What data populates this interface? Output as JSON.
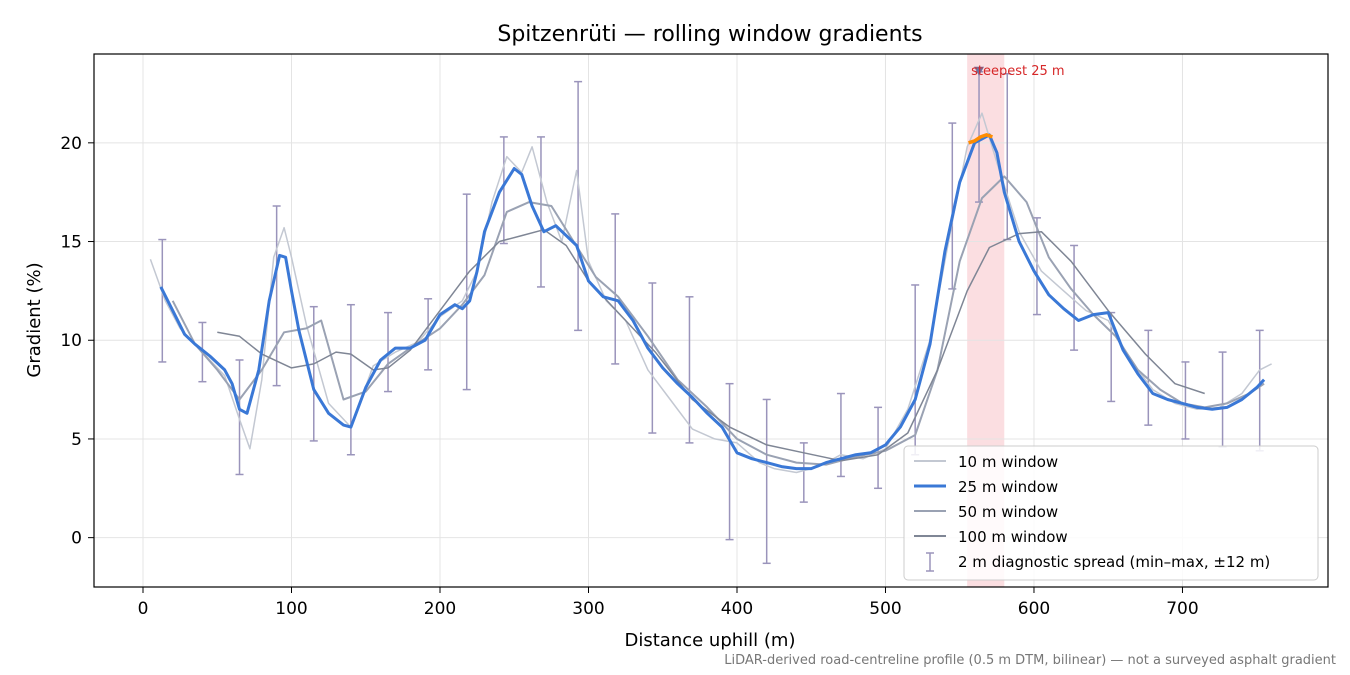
{
  "chart_data": {
    "type": "line",
    "title": "Spitzenrüti — rolling window gradients",
    "xlabel": "Distance uphill (m)",
    "ylabel": "Gradient (%)",
    "xlim": [
      -33,
      798
    ],
    "ylim": [
      -2.5,
      24.5
    ],
    "xticks": [
      0,
      100,
      200,
      300,
      400,
      500,
      600,
      700
    ],
    "yticks": [
      0,
      5,
      10,
      15,
      20
    ],
    "grid": true,
    "legend_position": "lower-right",
    "footnote": "LiDAR-derived road-centreline profile (0.5 m DTM, bilinear) — not a surveyed asphalt gradient",
    "annotation": {
      "text": "steepest 25 m",
      "x": 563,
      "y": 23.6,
      "span": [
        555,
        580
      ]
    },
    "colors": {
      "w10": "#c3c8d2",
      "w25": "#3a78d6",
      "w50": "#9aa2b3",
      "w100": "#7f8695",
      "spread": "#9a94bb",
      "highlight": "#f3a0a8",
      "steep": "#ff8c00",
      "marker": "#6f6f9c"
    },
    "series": [
      {
        "name": "10 m window",
        "x": [
          5,
          15,
          25,
          40,
          55,
          65,
          72,
          80,
          88,
          95,
          100,
          110,
          125,
          140,
          155,
          170,
          185,
          200,
          215,
          225,
          235,
          245,
          255,
          262,
          272,
          282,
          292,
          300,
          312,
          325,
          340,
          355,
          370,
          385,
          400,
          415,
          425,
          440,
          455,
          470,
          485,
          500,
          515,
          530,
          545,
          555,
          565,
          575,
          590,
          605,
          620,
          635,
          650,
          665,
          680,
          695,
          710,
          725,
          740,
          752,
          760
        ],
        "y": [
          14.1,
          12.0,
          10.6,
          9.4,
          8.2,
          6.0,
          4.5,
          8.0,
          14.2,
          15.7,
          14.2,
          10.8,
          6.8,
          5.6,
          8.7,
          9.4,
          9.9,
          11.2,
          12.0,
          13.5,
          17.0,
          19.3,
          18.5,
          19.8,
          17.0,
          15.0,
          18.6,
          14.0,
          12.0,
          11.0,
          8.5,
          7.0,
          5.5,
          5.0,
          4.8,
          3.8,
          3.5,
          3.3,
          3.6,
          4.2,
          4.0,
          4.5,
          6.5,
          10.0,
          16.0,
          19.8,
          21.5,
          19.0,
          15.5,
          13.5,
          12.5,
          11.5,
          11.0,
          9.0,
          7.5,
          6.8,
          6.5,
          6.6,
          7.3,
          8.5,
          8.8
        ]
      },
      {
        "name": "25 m window",
        "x": [
          12,
          20,
          28,
          35,
          45,
          55,
          60,
          65,
          70,
          78,
          85,
          92,
          96,
          100,
          105,
          115,
          125,
          135,
          140,
          150,
          160,
          170,
          180,
          190,
          200,
          210,
          215,
          220,
          225,
          230,
          240,
          250,
          255,
          262,
          270,
          278,
          285,
          292,
          300,
          310,
          320,
          330,
          340,
          350,
          360,
          370,
          380,
          390,
          400,
          410,
          420,
          430,
          440,
          450,
          460,
          470,
          480,
          490,
          500,
          510,
          520,
          530,
          540,
          550,
          560,
          565,
          570,
          575,
          580,
          590,
          600,
          610,
          620,
          630,
          640,
          650,
          660,
          670,
          680,
          690,
          700,
          710,
          720,
          730,
          740,
          750,
          755
        ],
        "y": [
          12.7,
          11.5,
          10.3,
          9.8,
          9.2,
          8.5,
          7.8,
          6.5,
          6.3,
          8.5,
          12.0,
          14.3,
          14.2,
          12.5,
          10.5,
          7.5,
          6.3,
          5.7,
          5.6,
          7.6,
          9.0,
          9.6,
          9.6,
          10.0,
          11.3,
          11.8,
          11.6,
          12.0,
          13.5,
          15.5,
          17.5,
          18.7,
          18.4,
          16.8,
          15.5,
          15.8,
          15.3,
          14.8,
          13.0,
          12.2,
          12.0,
          11.0,
          9.6,
          8.6,
          7.8,
          7.1,
          6.3,
          5.6,
          4.3,
          4.0,
          3.8,
          3.6,
          3.5,
          3.5,
          3.8,
          4.0,
          4.2,
          4.3,
          4.7,
          5.6,
          7.0,
          9.8,
          14.5,
          18.0,
          20.0,
          20.2,
          20.4,
          19.5,
          17.5,
          15.0,
          13.5,
          12.3,
          11.6,
          11.0,
          11.3,
          11.4,
          9.5,
          8.3,
          7.3,
          7.0,
          6.8,
          6.6,
          6.5,
          6.6,
          7.0,
          7.6,
          8.0
        ]
      },
      {
        "name": "50 m window",
        "x": [
          20,
          35,
          50,
          65,
          80,
          95,
          110,
          120,
          135,
          150,
          165,
          180,
          200,
          215,
          230,
          245,
          260,
          275,
          290,
          305,
          320,
          340,
          360,
          380,
          400,
          420,
          440,
          460,
          480,
          500,
          520,
          535,
          550,
          565,
          580,
          595,
          610,
          625,
          640,
          655,
          670,
          685,
          700,
          715,
          730,
          745,
          755
        ],
        "y": [
          12.0,
          9.8,
          8.5,
          7.0,
          8.5,
          10.4,
          10.6,
          11.0,
          7.0,
          7.4,
          8.8,
          9.6,
          10.6,
          11.8,
          13.3,
          16.5,
          17.0,
          16.8,
          15.0,
          13.2,
          12.2,
          10.2,
          8.0,
          6.6,
          5.0,
          4.2,
          3.8,
          3.7,
          4.1,
          4.4,
          5.2,
          8.5,
          14.0,
          17.2,
          18.3,
          17.0,
          14.2,
          12.6,
          11.3,
          10.2,
          8.5,
          7.5,
          6.8,
          6.6,
          6.8,
          7.3,
          7.8
        ]
      },
      {
        "name": "100 m window",
        "x": [
          50,
          65,
          80,
          100,
          115,
          130,
          140,
          155,
          165,
          180,
          200,
          220,
          240,
          255,
          270,
          285,
          300,
          320,
          345,
          370,
          395,
          420,
          445,
          470,
          495,
          515,
          535,
          555,
          570,
          590,
          605,
          625,
          650,
          675,
          695,
          715
        ],
        "y": [
          10.4,
          10.2,
          9.3,
          8.6,
          8.8,
          9.4,
          9.3,
          8.5,
          8.6,
          9.5,
          11.5,
          13.5,
          15.0,
          15.3,
          15.6,
          14.8,
          13.0,
          11.4,
          9.4,
          7.0,
          5.6,
          4.7,
          4.3,
          3.9,
          4.2,
          5.3,
          8.5,
          12.5,
          14.7,
          15.4,
          15.5,
          14.0,
          11.5,
          9.3,
          7.8,
          7.3
        ]
      }
    ],
    "steep_segment": {
      "x": [
        556,
        560,
        564,
        568,
        572
      ],
      "y": [
        20.0,
        20.1,
        20.3,
        20.4,
        20.3
      ]
    },
    "error_bars": {
      "name": "2 m diagnostic spread (min–max, ±12 m)",
      "x": [
        13,
        40,
        65,
        90,
        115,
        140,
        165,
        192,
        218,
        243,
        268,
        293,
        318,
        343,
        368,
        395,
        420,
        445,
        470,
        495,
        520,
        545,
        563,
        582,
        602,
        627,
        652,
        677,
        702,
        727,
        752
      ],
      "low": [
        8.9,
        7.9,
        3.2,
        7.7,
        4.9,
        4.2,
        7.4,
        8.5,
        7.5,
        14.9,
        12.7,
        10.5,
        8.8,
        5.3,
        4.8,
        -0.1,
        -1.3,
        1.8,
        3.1,
        2.5,
        4.2,
        12.6,
        17.0,
        15.1,
        11.3,
        9.5,
        6.9,
        5.7,
        5.0,
        4.6,
        4.4
      ],
      "high": [
        15.1,
        10.9,
        9.0,
        16.8,
        11.7,
        11.8,
        11.4,
        12.1,
        17.4,
        20.3,
        20.3,
        23.1,
        16.4,
        12.9,
        12.2,
        7.8,
        7.0,
        4.8,
        7.3,
        6.6,
        12.8,
        21.0,
        23.6,
        23.5,
        16.2,
        14.8,
        11.4,
        10.5,
        8.9,
        9.4,
        10.5
      ]
    }
  }
}
